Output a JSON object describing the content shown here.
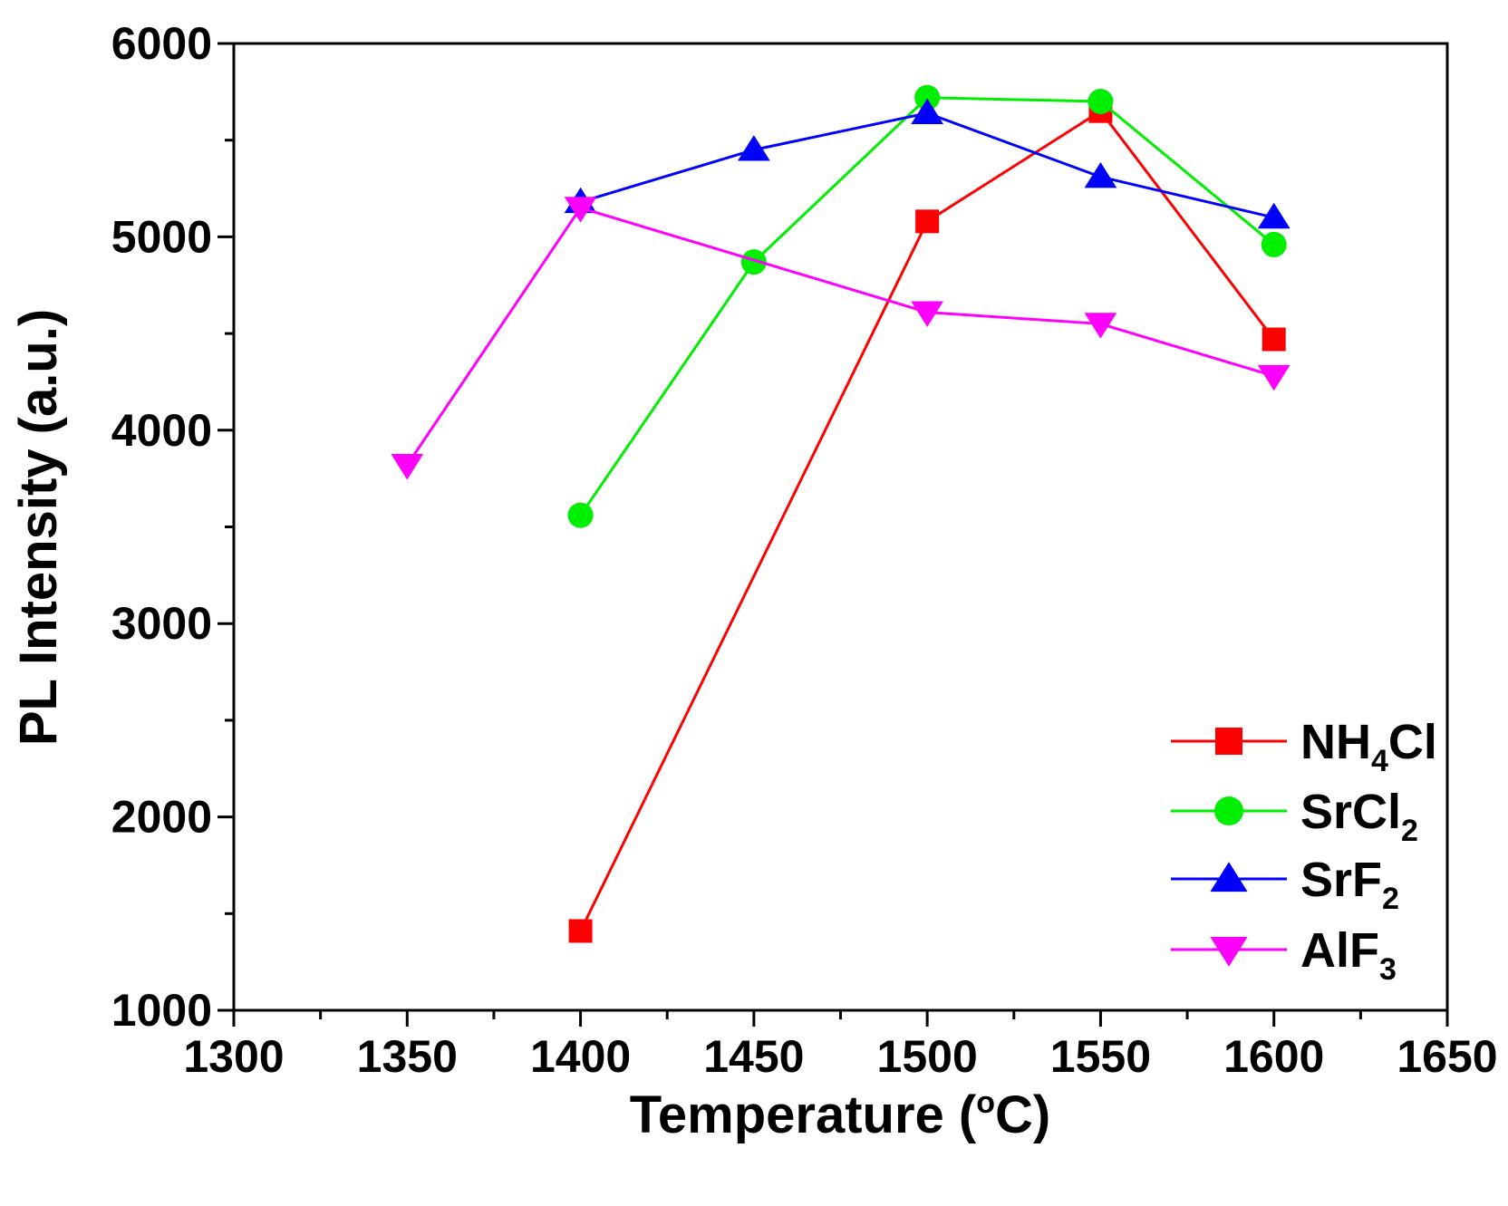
{
  "chart_data": {
    "type": "line",
    "xlabel": "Temperature (°C)",
    "xlabel_parts": {
      "prefix": "Temperature (",
      "degree": "o",
      "suffix": "C)"
    },
    "ylabel": "PL Intensity (a.u.)",
    "xlim": [
      1300,
      1650
    ],
    "ylim": [
      1000,
      6000
    ],
    "x_ticks": [
      "1300",
      "1350",
      "1400",
      "1450",
      "1500",
      "1550",
      "1600",
      "1650"
    ],
    "y_ticks": [
      "1000",
      "2000",
      "3000",
      "4000",
      "5000",
      "6000"
    ],
    "legend_position": "bottom-right",
    "series": [
      {
        "name": "NH4Cl",
        "label_main": "NH",
        "label_sub": "4",
        "label_tail": "Cl",
        "color": "#ff0000",
        "marker": "square",
        "x": [
          1400,
          1500,
          1550,
          1600
        ],
        "values": [
          1410,
          5080,
          5650,
          4470
        ]
      },
      {
        "name": "SrCl2",
        "label_main": "SrCl",
        "label_sub": "2",
        "label_tail": "",
        "color": "#00ee00",
        "marker": "circle",
        "x": [
          1400,
          1450,
          1500,
          1550,
          1600
        ],
        "values": [
          3560,
          4870,
          5720,
          5700,
          4960
        ]
      },
      {
        "name": "SrF2",
        "label_main": "SrF",
        "label_sub": "2",
        "label_tail": "",
        "color": "#0000ff",
        "marker": "triangle-up",
        "x": [
          1400,
          1450,
          1500,
          1550,
          1600
        ],
        "values": [
          5180,
          5450,
          5640,
          5310,
          5100
        ]
      },
      {
        "name": "AlF3",
        "label_main": "AlF",
        "label_sub": "3",
        "label_tail": "",
        "color": "#ff00ff",
        "marker": "triangle-down",
        "x": [
          1350,
          1400,
          1500,
          1550,
          1600
        ],
        "values": [
          3820,
          5150,
          4610,
          4550,
          4280
        ]
      }
    ]
  }
}
